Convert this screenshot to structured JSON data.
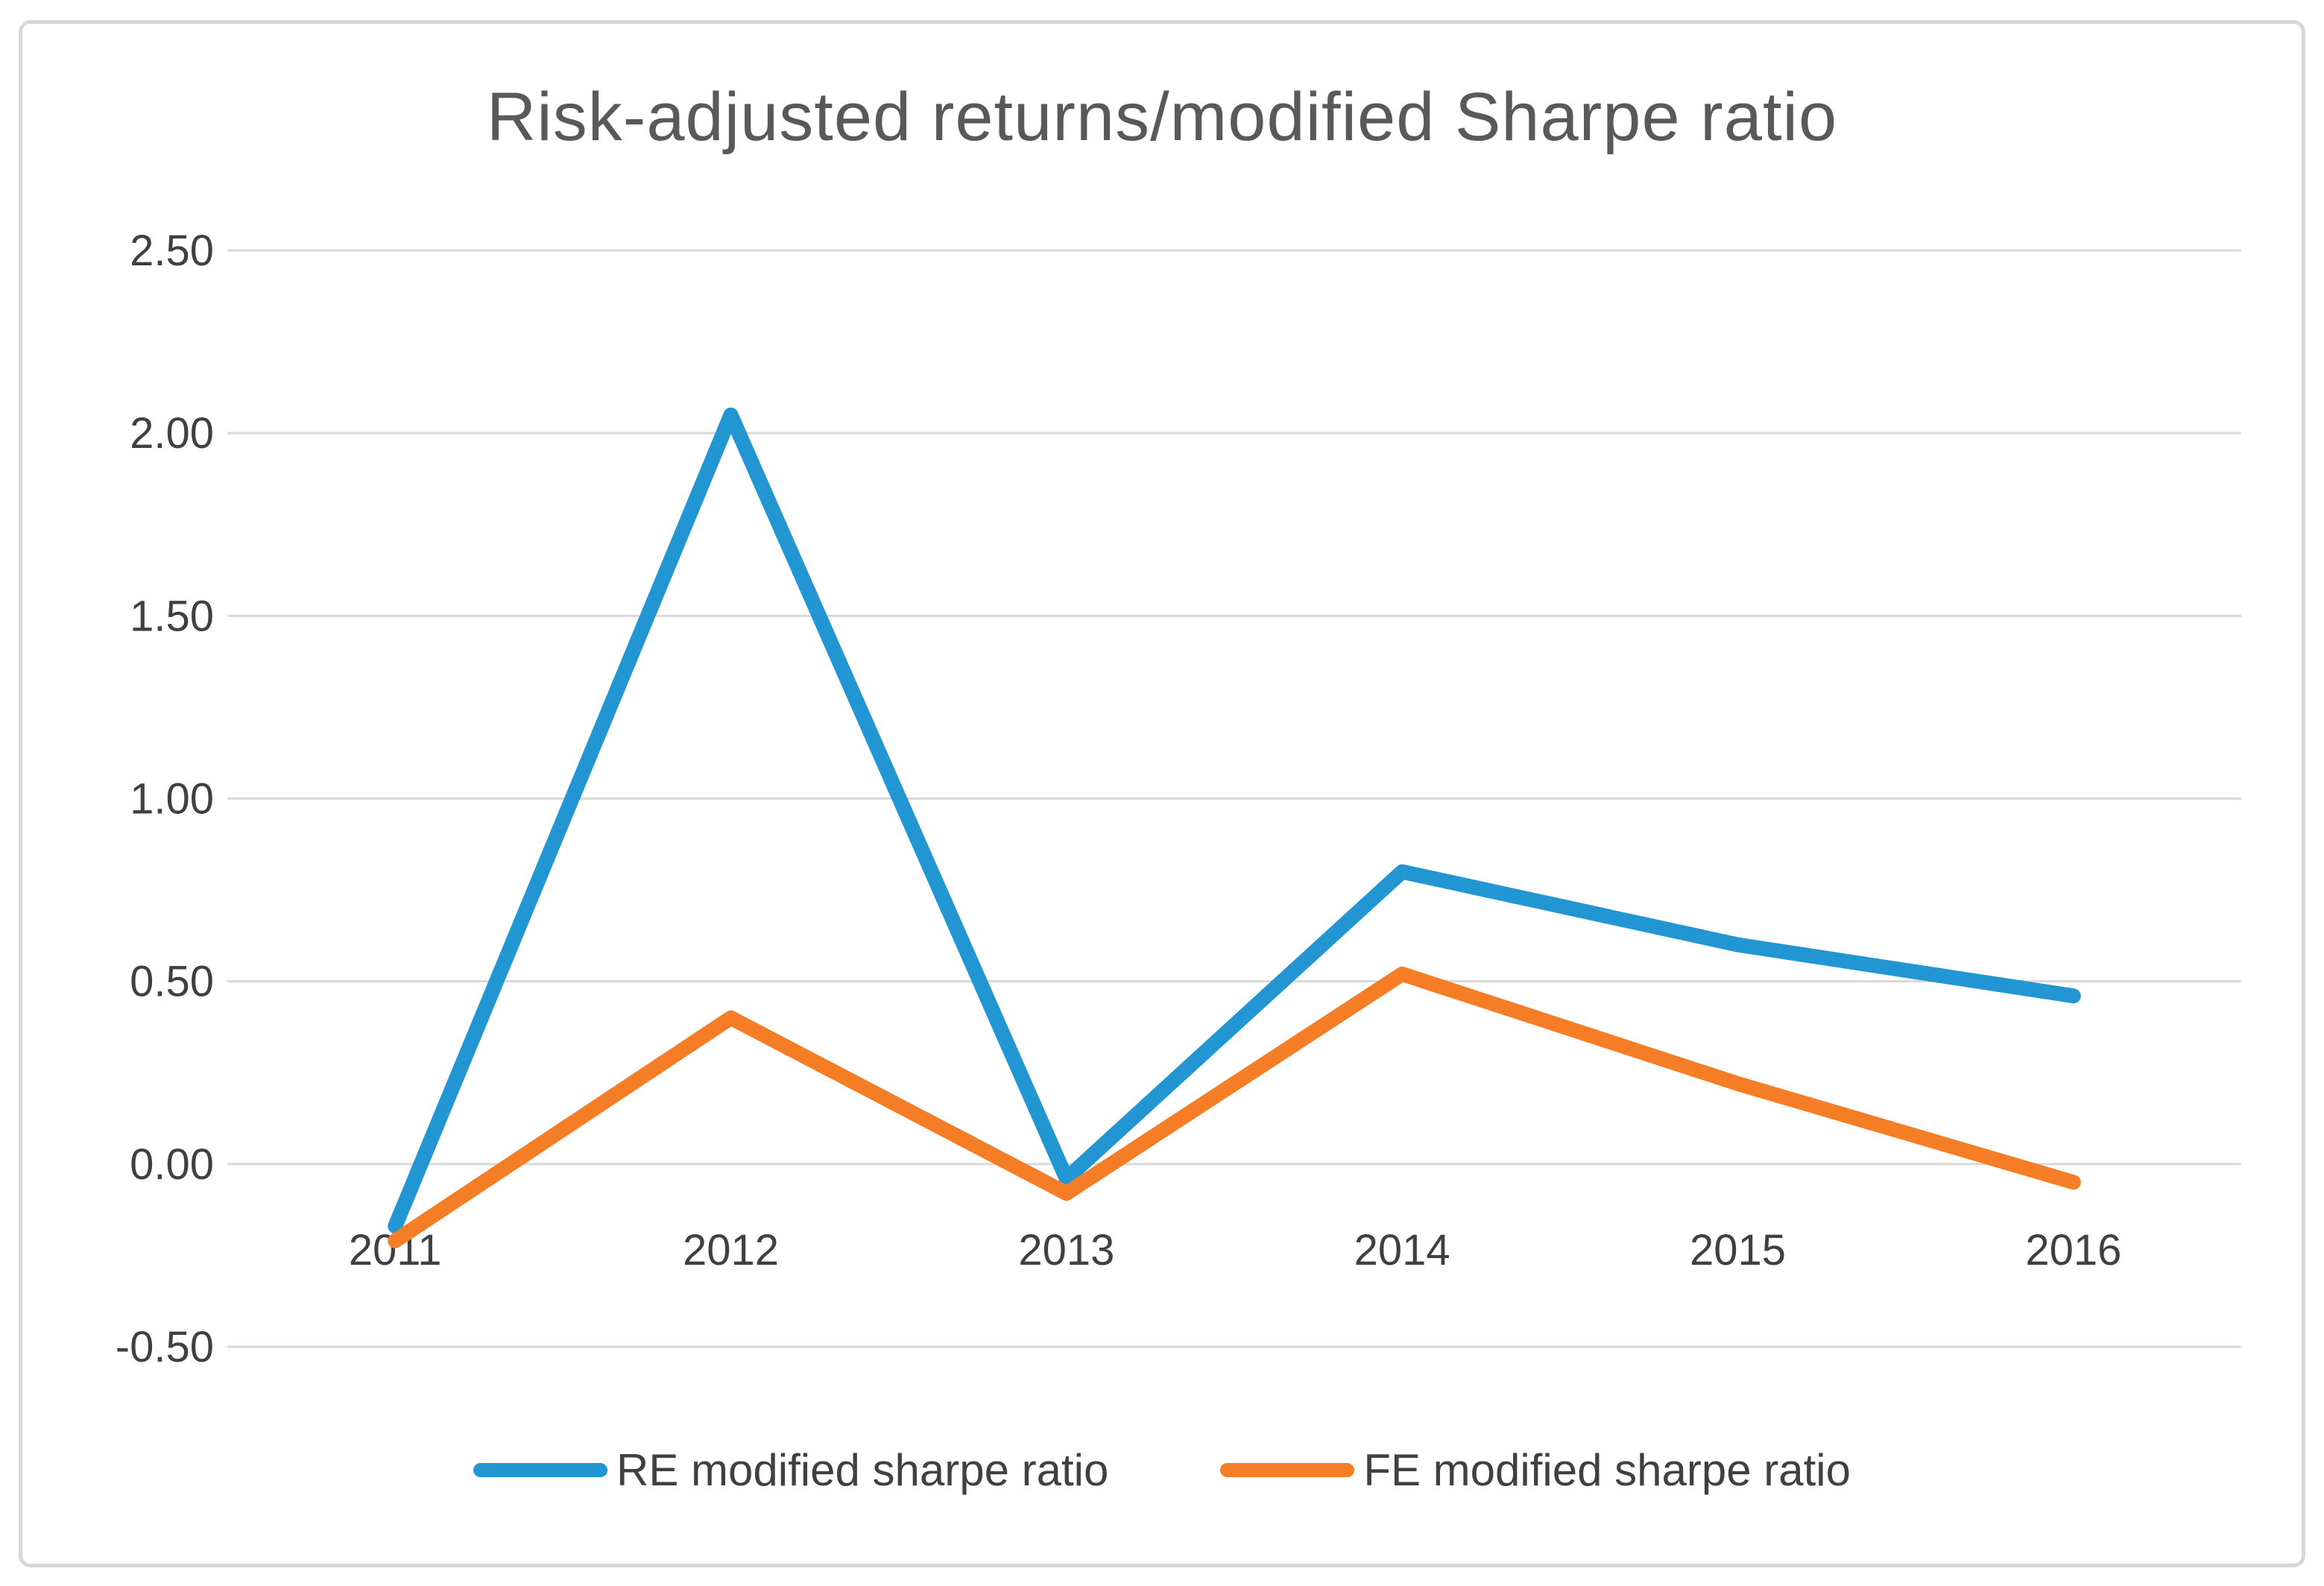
{
  "title": "Risk-adjusted returns/modified Sharpe ratio",
  "colors": {
    "re_line": "#2295d3",
    "fe_line": "#f57d25",
    "gridline": "#d9d9d9",
    "frame_border": "#d7d7d7",
    "title_text": "#595959",
    "tick_text": "#404040",
    "background": "#ffffff"
  },
  "chart_data": {
    "type": "line",
    "title": "Risk-adjusted returns/modified Sharpe ratio",
    "categories": [
      "2011",
      "2012",
      "2013",
      "2014",
      "2015",
      "2016"
    ],
    "series": [
      {
        "name": "RE modified sharpe ratio",
        "color": "#2295d3",
        "values": [
          -0.17,
          2.05,
          -0.04,
          0.8,
          0.6,
          0.46
        ]
      },
      {
        "name": "FE modified sharpe ratio",
        "color": "#f57d25",
        "values": [
          -0.21,
          0.4,
          -0.08,
          0.52,
          0.22,
          -0.05
        ]
      }
    ],
    "xlabel": "",
    "ylabel": "",
    "ylim": [
      -0.5,
      2.5
    ],
    "ytick_step": 0.5,
    "ytick_labels": [
      "2.50",
      "2.00",
      "1.50",
      "1.00",
      "0.50",
      "0.00",
      "-0.50"
    ],
    "grid": true,
    "vertical_grid": false,
    "legend_position": "bottom"
  }
}
